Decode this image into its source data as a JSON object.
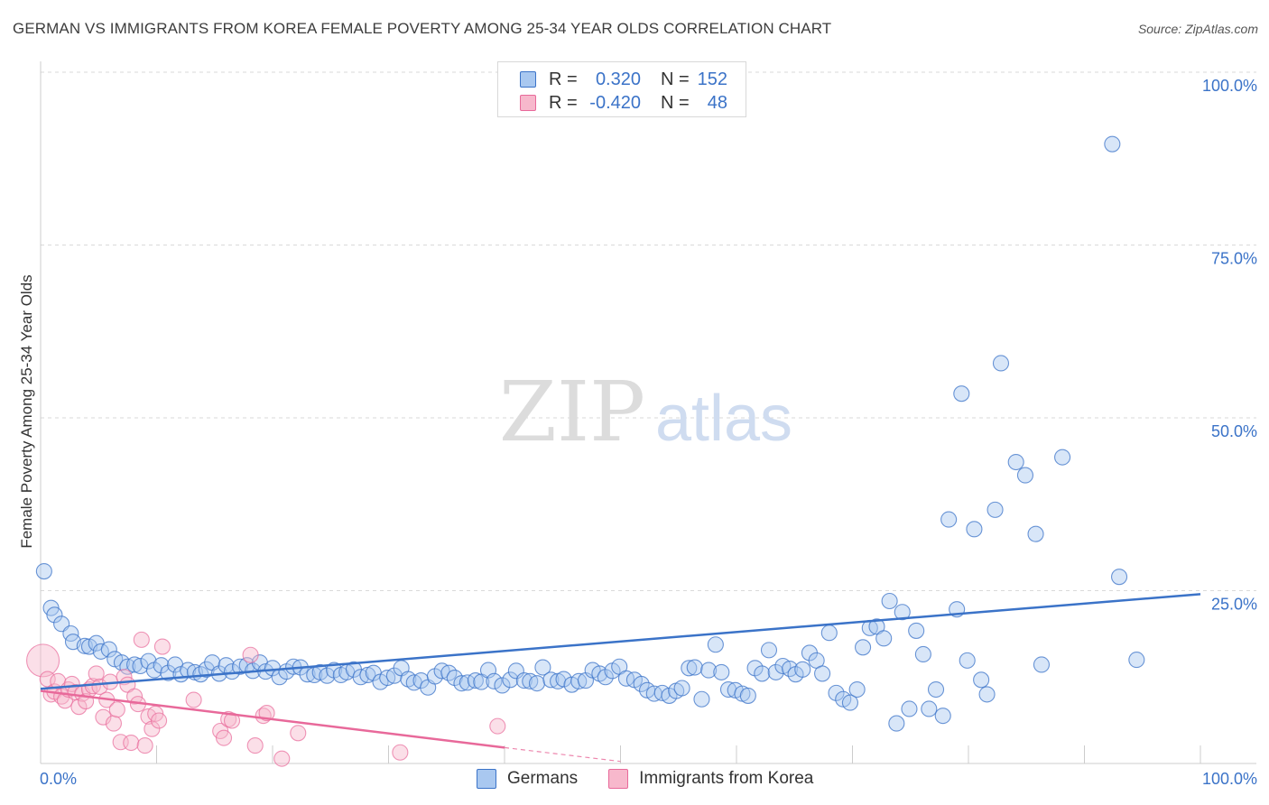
{
  "title": "GERMAN VS IMMIGRANTS FROM KOREA FEMALE POVERTY AMONG 25-34 YEAR OLDS CORRELATION CHART",
  "source": "Source: ZipAtlas.com",
  "watermark": {
    "zip": "ZIP",
    "atlas": "atlas"
  },
  "colors": {
    "blue": "#3b73c8",
    "blue_fill": "#a9c8f0",
    "pink": "#e8699a",
    "pink_fill": "#f7b8cc",
    "grid": "#d9d9d9"
  },
  "legend_top": [
    {
      "r_label": "R =",
      "r_value": "0.320",
      "n_label": "N =",
      "n_value": "152"
    },
    {
      "r_label": "R =",
      "r_value": "-0.420",
      "n_label": "N =",
      "n_value": "48"
    }
  ],
  "chart_data": {
    "type": "scatter",
    "title": "GERMAN VS IMMIGRANTS FROM KOREA FEMALE POVERTY AMONG 25-34 YEAR OLDS CORRELATION CHART",
    "xlabel": "",
    "ylabel": "Female Poverty Among 25-34 Year Olds",
    "xlim": [
      0,
      100
    ],
    "ylim": [
      0,
      100
    ],
    "x_tick_labels": [
      "0.0%",
      "100.0%"
    ],
    "y_tick_labels": [
      "25.0%",
      "50.0%",
      "75.0%",
      "100.0%"
    ],
    "y_ticks": [
      25,
      50,
      75,
      100
    ],
    "grid": true,
    "legend": "bottom-center",
    "series": [
      {
        "name": "Germans",
        "color": "#3b73c8",
        "trend": {
          "x": [
            0,
            100
          ],
          "y": [
            10.8,
            24.5
          ]
        },
        "points": [
          [
            0.3,
            27.8
          ],
          [
            0.9,
            22.5
          ],
          [
            1.2,
            21.5
          ],
          [
            1.8,
            20.2
          ],
          [
            2.6,
            18.8
          ],
          [
            2.8,
            17.6
          ],
          [
            3.8,
            17.0
          ],
          [
            4.2,
            16.9
          ],
          [
            4.8,
            17.4
          ],
          [
            5.2,
            16.2
          ],
          [
            5.9,
            16.5
          ],
          [
            6.4,
            15.1
          ],
          [
            7.0,
            14.6
          ],
          [
            7.5,
            14.0
          ],
          [
            8.1,
            14.3
          ],
          [
            8.6,
            14.1
          ],
          [
            9.3,
            14.8
          ],
          [
            9.8,
            13.5
          ],
          [
            10.4,
            14.2
          ],
          [
            11.0,
            13.1
          ],
          [
            11.6,
            14.3
          ],
          [
            12.1,
            12.9
          ],
          [
            12.7,
            13.5
          ],
          [
            13.3,
            13.2
          ],
          [
            13.8,
            12.9
          ],
          [
            14.3,
            13.6
          ],
          [
            14.8,
            14.6
          ],
          [
            15.4,
            13.0
          ],
          [
            16.0,
            14.2
          ],
          [
            16.5,
            13.3
          ],
          [
            17.2,
            14.0
          ],
          [
            17.8,
            14.2
          ],
          [
            18.3,
            13.4
          ],
          [
            18.9,
            14.6
          ],
          [
            19.4,
            13.3
          ],
          [
            20.0,
            13.8
          ],
          [
            20.6,
            12.5
          ],
          [
            21.2,
            13.3
          ],
          [
            21.8,
            14.0
          ],
          [
            22.4,
            13.9
          ],
          [
            23.0,
            12.9
          ],
          [
            23.6,
            12.8
          ],
          [
            24.1,
            13.2
          ],
          [
            24.7,
            12.7
          ],
          [
            25.3,
            13.5
          ],
          [
            25.9,
            12.8
          ],
          [
            26.4,
            13.2
          ],
          [
            27.0,
            13.6
          ],
          [
            27.6,
            12.5
          ],
          [
            28.2,
            12.8
          ],
          [
            28.7,
            13.1
          ],
          [
            29.3,
            11.8
          ],
          [
            29.9,
            12.4
          ],
          [
            30.5,
            12.7
          ],
          [
            31.1,
            13.8
          ],
          [
            31.7,
            12.2
          ],
          [
            32.2,
            11.7
          ],
          [
            32.8,
            12.0
          ],
          [
            33.4,
            11.0
          ],
          [
            34.0,
            12.6
          ],
          [
            34.6,
            13.4
          ],
          [
            35.2,
            13.1
          ],
          [
            35.7,
            12.4
          ],
          [
            36.3,
            11.6
          ],
          [
            36.8,
            11.7
          ],
          [
            37.5,
            12.0
          ],
          [
            38.0,
            11.8
          ],
          [
            38.6,
            13.5
          ],
          [
            39.1,
            11.9
          ],
          [
            39.8,
            11.3
          ],
          [
            40.5,
            12.1
          ],
          [
            41.0,
            13.4
          ],
          [
            41.7,
            12.0
          ],
          [
            42.2,
            11.9
          ],
          [
            42.8,
            11.6
          ],
          [
            43.3,
            13.9
          ],
          [
            44.0,
            12.1
          ],
          [
            44.6,
            11.9
          ],
          [
            45.1,
            12.2
          ],
          [
            45.8,
            11.4
          ],
          [
            46.4,
            11.9
          ],
          [
            47.0,
            12.0
          ],
          [
            47.6,
            13.5
          ],
          [
            48.2,
            13.0
          ],
          [
            48.7,
            12.5
          ],
          [
            49.3,
            13.4
          ],
          [
            49.9,
            14.0
          ],
          [
            50.5,
            12.3
          ],
          [
            51.2,
            12.1
          ],
          [
            51.8,
            11.5
          ],
          [
            52.3,
            10.6
          ],
          [
            52.9,
            10.1
          ],
          [
            53.6,
            10.2
          ],
          [
            54.2,
            9.8
          ],
          [
            54.8,
            10.5
          ],
          [
            55.3,
            10.9
          ],
          [
            55.9,
            13.8
          ],
          [
            56.4,
            13.9
          ],
          [
            57.0,
            9.3
          ],
          [
            57.6,
            13.5
          ],
          [
            58.2,
            17.2
          ],
          [
            58.7,
            13.2
          ],
          [
            59.3,
            10.7
          ],
          [
            59.9,
            10.6
          ],
          [
            60.5,
            10.1
          ],
          [
            61.0,
            9.8
          ],
          [
            61.6,
            13.8
          ],
          [
            62.2,
            13.0
          ],
          [
            62.8,
            16.4
          ],
          [
            63.4,
            13.2
          ],
          [
            64.0,
            14.1
          ],
          [
            64.6,
            13.7
          ],
          [
            65.1,
            12.9
          ],
          [
            65.7,
            13.6
          ],
          [
            66.3,
            16.0
          ],
          [
            66.9,
            14.9
          ],
          [
            67.4,
            13.0
          ],
          [
            68.0,
            18.9
          ],
          [
            68.6,
            10.2
          ],
          [
            69.2,
            9.3
          ],
          [
            69.8,
            8.8
          ],
          [
            70.4,
            10.7
          ],
          [
            70.9,
            16.8
          ],
          [
            71.5,
            19.6
          ],
          [
            72.1,
            19.8
          ],
          [
            72.7,
            18.1
          ],
          [
            73.2,
            23.5
          ],
          [
            73.8,
            5.8
          ],
          [
            74.3,
            21.9
          ],
          [
            74.9,
            7.9
          ],
          [
            75.5,
            19.2
          ],
          [
            76.1,
            15.8
          ],
          [
            76.6,
            7.9
          ],
          [
            77.2,
            10.7
          ],
          [
            77.8,
            6.9
          ],
          [
            78.3,
            35.3
          ],
          [
            79.0,
            22.3
          ],
          [
            79.4,
            53.5
          ],
          [
            79.9,
            14.9
          ],
          [
            80.5,
            33.9
          ],
          [
            81.1,
            12.1
          ],
          [
            81.6,
            10.0
          ],
          [
            82.3,
            36.7
          ],
          [
            82.8,
            57.9
          ],
          [
            84.1,
            43.6
          ],
          [
            84.9,
            41.7
          ],
          [
            85.8,
            33.2
          ],
          [
            86.3,
            14.3
          ],
          [
            88.1,
            44.3
          ],
          [
            92.4,
            89.6
          ],
          [
            93.0,
            27.0
          ],
          [
            94.5,
            15.0
          ]
        ]
      },
      {
        "name": "Immigrants from Korea",
        "color": "#e8699a",
        "trend": {
          "x": [
            0,
            40
          ],
          "y": [
            10.5,
            2.3
          ]
        },
        "trend_dashed": {
          "x": [
            40,
            50
          ],
          "y": [
            2.3,
            0.3
          ]
        },
        "points": [
          [
            0.2,
            14.9
          ],
          [
            0.6,
            12.2
          ],
          [
            0.9,
            10.0
          ],
          [
            1.2,
            10.4
          ],
          [
            1.5,
            11.9
          ],
          [
            1.8,
            9.7
          ],
          [
            2.1,
            9.1
          ],
          [
            2.4,
            10.7
          ],
          [
            2.7,
            11.5
          ],
          [
            3.0,
            10.3
          ],
          [
            3.3,
            8.2
          ],
          [
            3.6,
            10.1
          ],
          [
            3.9,
            9.0
          ],
          [
            4.2,
            10.7
          ],
          [
            4.5,
            11.2
          ],
          [
            4.8,
            13.0
          ],
          [
            5.1,
            11.1
          ],
          [
            5.4,
            6.7
          ],
          [
            5.7,
            9.2
          ],
          [
            6.0,
            11.8
          ],
          [
            6.3,
            5.8
          ],
          [
            6.6,
            7.8
          ],
          [
            6.9,
            3.1
          ],
          [
            7.2,
            12.5
          ],
          [
            7.5,
            11.4
          ],
          [
            7.8,
            3.0
          ],
          [
            8.1,
            9.7
          ],
          [
            8.4,
            8.6
          ],
          [
            8.7,
            17.9
          ],
          [
            9.0,
            2.6
          ],
          [
            9.3,
            6.8
          ],
          [
            9.6,
            5.0
          ],
          [
            9.9,
            7.2
          ],
          [
            10.2,
            6.2
          ],
          [
            10.5,
            16.9
          ],
          [
            13.2,
            9.2
          ],
          [
            15.5,
            4.7
          ],
          [
            15.8,
            3.7
          ],
          [
            16.2,
            6.4
          ],
          [
            16.5,
            6.2
          ],
          [
            18.1,
            15.7
          ],
          [
            18.5,
            2.6
          ],
          [
            19.2,
            6.9
          ],
          [
            19.5,
            7.3
          ],
          [
            20.8,
            0.7
          ],
          [
            31.0,
            1.6
          ],
          [
            39.4,
            5.4
          ],
          [
            22.2,
            4.4
          ]
        ]
      }
    ]
  },
  "legend_bottom": [
    {
      "label": "Germans"
    },
    {
      "label": "Immigrants from Korea"
    }
  ]
}
